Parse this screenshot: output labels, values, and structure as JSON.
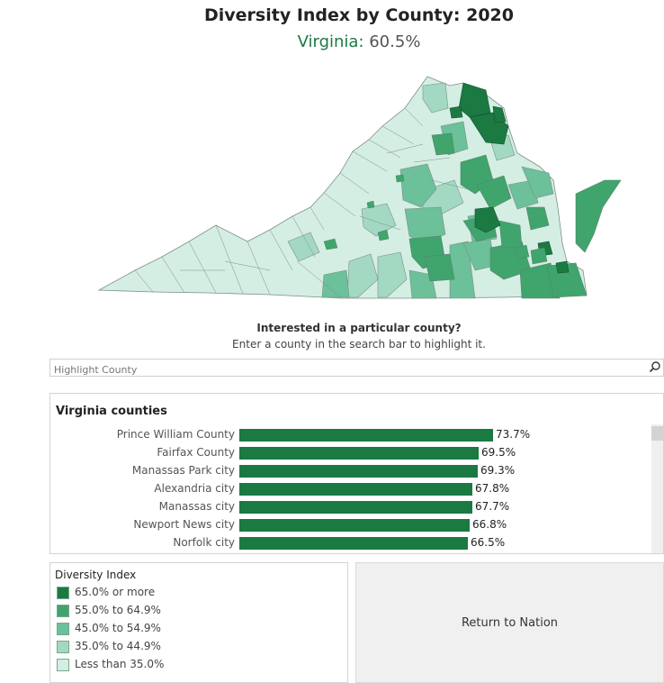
{
  "header": {
    "title": "Diversity Index by County: 2020",
    "state": "Virginia:",
    "state_value": "60.5%"
  },
  "prompt": {
    "title": "Interested in a particular county?",
    "subtitle": "Enter a county in the search bar to highlight it."
  },
  "search": {
    "placeholder": "Highlight County"
  },
  "counties_panel": {
    "title": "Virginia counties",
    "rows": [
      {
        "name": "Prince William County",
        "value": 73.7,
        "label": "73.7%"
      },
      {
        "name": "Fairfax County",
        "value": 69.5,
        "label": "69.5%"
      },
      {
        "name": "Manassas Park city",
        "value": 69.3,
        "label": "69.3%"
      },
      {
        "name": "Alexandria city",
        "value": 67.8,
        "label": "67.8%"
      },
      {
        "name": "Manassas city",
        "value": 67.7,
        "label": "67.7%"
      },
      {
        "name": "Newport News city",
        "value": 66.8,
        "label": "66.8%"
      },
      {
        "name": "Norfolk city",
        "value": 66.5,
        "label": "66.5%"
      }
    ],
    "bar_color": "#1a7a42"
  },
  "legend": {
    "title": "Diversity Index",
    "items": [
      {
        "label": "65.0% or more",
        "color": "#1a7a42"
      },
      {
        "label": "55.0% to 64.9%",
        "color": "#3fa56d"
      },
      {
        "label": "45.0% to 54.9%",
        "color": "#6cc09a"
      },
      {
        "label": "35.0% to 44.9%",
        "color": "#a3d9c3"
      },
      {
        "label": "Less than 35.0%",
        "color": "#d4eee4"
      }
    ]
  },
  "return_button": {
    "label": "Return to Nation"
  },
  "icons": {
    "search": "magnifier-icon"
  }
}
